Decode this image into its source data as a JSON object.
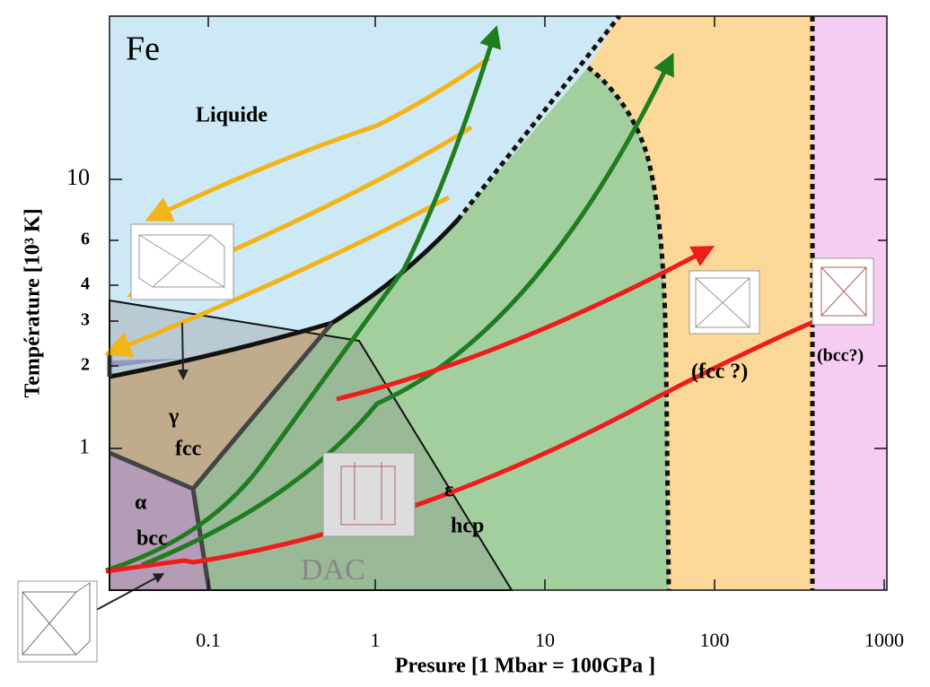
{
  "title": "Fe",
  "regions": {
    "liquid": "Liquide",
    "gamma": {
      "symbol": "γ",
      "structure": "fcc"
    },
    "alpha": {
      "symbol": "α",
      "structure": "bcc"
    },
    "epsilon": {
      "symbol": "ε",
      "structure": "hcp"
    },
    "dac": "DAC",
    "high_fcc": "(fcc ?)",
    "high_bcc": "(bcc?)"
  },
  "axes": {
    "x": {
      "label": "Presure [1 Mbar = 100GPa ]",
      "ticks": [
        "0.1",
        "1",
        "10",
        "100",
        "1000"
      ]
    },
    "y": {
      "label": "Température  [10³ K]",
      "ticks": [
        "10",
        "6",
        "4",
        "3",
        "2",
        "1"
      ]
    }
  }
}
